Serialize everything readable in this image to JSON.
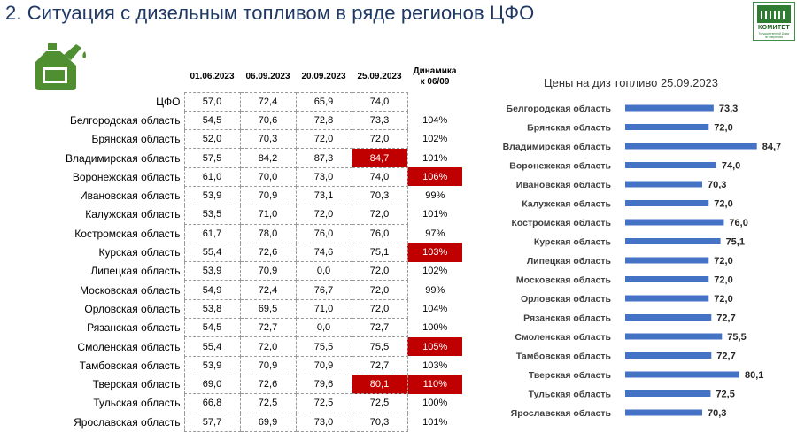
{
  "page": {
    "title": "2. Ситуация с дизельным топливом в ряде регионов ЦФО",
    "logo": {
      "title": "КОМИТЕТ",
      "subtitle_1": "Государственной Думы",
      "subtitle_2": "по энергетике"
    }
  },
  "table": {
    "columns": [
      "01.06.2023",
      "06.09.2023",
      "20.09.2023",
      "25.09.2023"
    ],
    "dyn_header_1": "Динамика",
    "dyn_header_2": "к 06/09",
    "rows": [
      {
        "region": "ЦФО",
        "v": [
          "57,0",
          "72,4",
          "65,9",
          "74,0"
        ],
        "dyn": ""
      },
      {
        "region": "Белгородская область",
        "v": [
          "54,5",
          "70,6",
          "72,8",
          "73,3"
        ],
        "dyn": "104%"
      },
      {
        "region": "Брянская область",
        "v": [
          "52,0",
          "70,3",
          "72,0",
          "72,0"
        ],
        "dyn": "102%"
      },
      {
        "region": "Владимирская область",
        "v": [
          "57,5",
          "84,2",
          "87,3",
          "84,7"
        ],
        "dyn": "101%"
      },
      {
        "region": "Воронежская область",
        "v": [
          "61,0",
          "70,0",
          "73,0",
          "74,0"
        ],
        "dyn": "106%"
      },
      {
        "region": "Ивановская область",
        "v": [
          "53,9",
          "70,9",
          "73,1",
          "70,3"
        ],
        "dyn": "99%"
      },
      {
        "region": "Калужская область",
        "v": [
          "53,5",
          "71,0",
          "72,0",
          "72,0"
        ],
        "dyn": "101%"
      },
      {
        "region": "Костромская область",
        "v": [
          "61,7",
          "78,0",
          "76,0",
          "76,0"
        ],
        "dyn": "97%"
      },
      {
        "region": "Курская область",
        "v": [
          "55,4",
          "72,6",
          "74,6",
          "75,1"
        ],
        "dyn": "103%"
      },
      {
        "region": "Липецкая область",
        "v": [
          "53,9",
          "70,9",
          "0,0",
          "72,0"
        ],
        "dyn": "102%"
      },
      {
        "region": "Московская область",
        "v": [
          "54,9",
          "72,4",
          "76,7",
          "72,0"
        ],
        "dyn": "99%"
      },
      {
        "region": "Орловская область",
        "v": [
          "53,8",
          "69,5",
          "71,0",
          "72,0"
        ],
        "dyn": "104%"
      },
      {
        "region": "Рязанская область",
        "v": [
          "54,5",
          "72,7",
          "0,0",
          "72,7"
        ],
        "dyn": "100%"
      },
      {
        "region": "Смоленская область",
        "v": [
          "55,4",
          "72,0",
          "75,5",
          "75,5"
        ],
        "dyn": "105%"
      },
      {
        "region": "Тамбовская область",
        "v": [
          "53,9",
          "70,9",
          "70,9",
          "72,7"
        ],
        "dyn": "103%"
      },
      {
        "region": "Тверская область",
        "v": [
          "69,0",
          "72,6",
          "79,6",
          "80,1"
        ],
        "dyn": "110%"
      },
      {
        "region": "Тульская область",
        "v": [
          "66,8",
          "72,5",
          "72,5",
          "72,5"
        ],
        "dyn": "100%"
      },
      {
        "region": "Ярославская область",
        "v": [
          "57,7",
          "69,9",
          "73,0",
          "70,3"
        ],
        "dyn": "101%"
      }
    ],
    "highlight_color": "#c00000"
  },
  "chart_data": {
    "type": "bar",
    "orientation": "horizontal",
    "title": "Цены на диз топливо 25.09.2023",
    "categories": [
      "Белгородская область",
      "Брянская область",
      "Владимирская область",
      "Воронежская область",
      "Ивановская область",
      "Калужская область",
      "Костромская область",
      "Курская область",
      "Липецкая область",
      "Московская область",
      "Орловская область",
      "Рязанская область",
      "Смоленская область",
      "Тамбовская область",
      "Тверская область",
      "Тульская область",
      "Ярославская область"
    ],
    "values": [
      73.3,
      72.0,
      84.7,
      74.0,
      70.3,
      72.0,
      76.0,
      75.1,
      72.0,
      72.0,
      72.0,
      72.7,
      75.5,
      72.7,
      80.1,
      72.5,
      70.3
    ],
    "labels": [
      "73,3",
      "72,0",
      "84,7",
      "74,0",
      "70,3",
      "72,0",
      "76,0",
      "75,1",
      "72,0",
      "72,0",
      "72,0",
      "72,7",
      "75,5",
      "72,7",
      "80,1",
      "72,5",
      "70,3"
    ],
    "xlim": [
      50,
      85
    ],
    "bar_color": "#4472c4"
  }
}
